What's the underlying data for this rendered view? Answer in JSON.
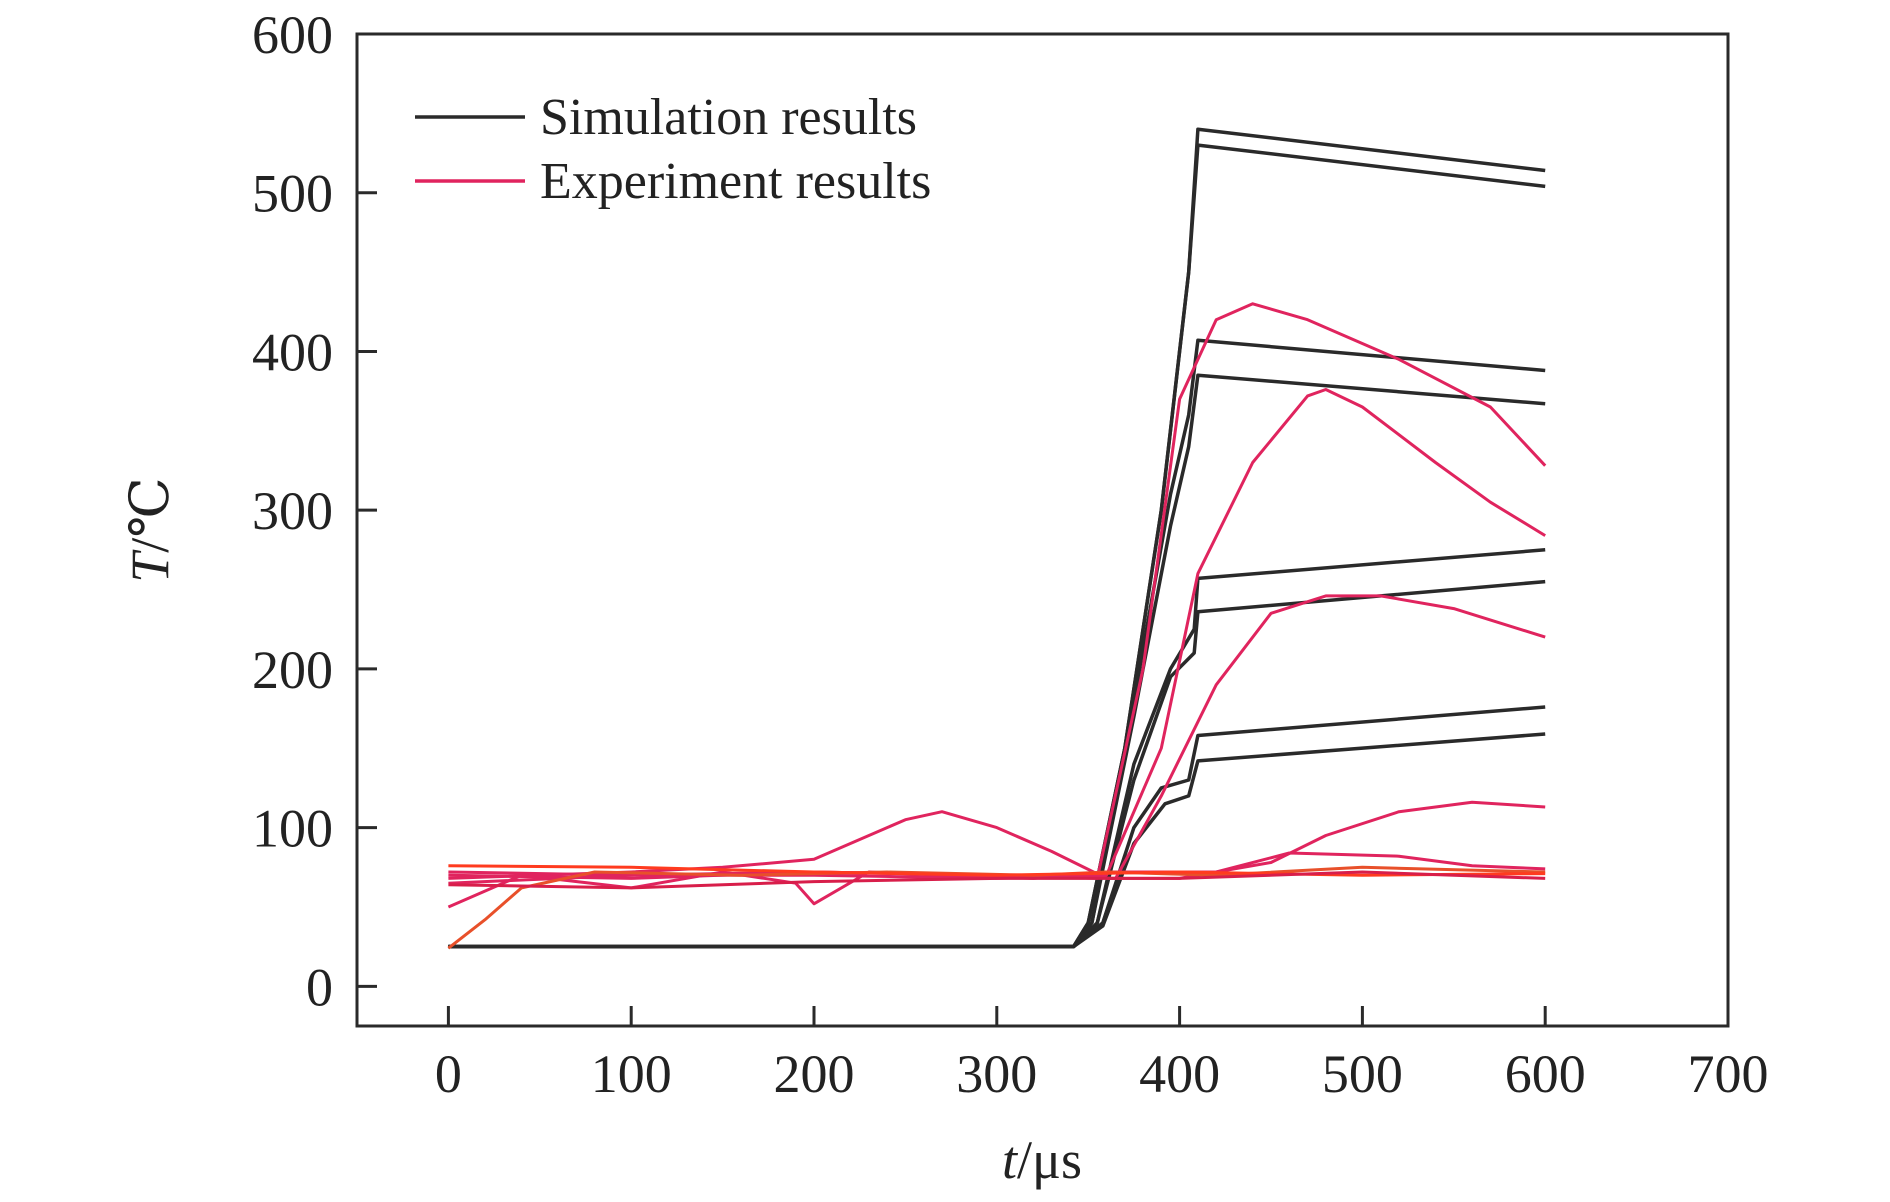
{
  "chart_data": {
    "type": "line",
    "title": "",
    "xlabel_italic": "t",
    "xlabel_unit": "/μs",
    "ylabel_italic": "T",
    "ylabel_unit": "/℃",
    "xlim": [
      -50,
      700
    ],
    "ylim": [
      -25,
      600
    ],
    "xticks": [
      0,
      100,
      200,
      300,
      400,
      500,
      600,
      700
    ],
    "yticks": [
      0,
      100,
      200,
      300,
      400,
      500,
      600
    ],
    "grid": false,
    "legend_position": "top-left",
    "legend": [
      {
        "label": "Simulation results",
        "color": "#2a2a2a"
      },
      {
        "label": "Experiment results",
        "color": "#e0245e"
      }
    ],
    "series": [
      {
        "group": "simulation",
        "color": "#2a2a2a",
        "points": [
          [
            0,
            25
          ],
          [
            342,
            25
          ],
          [
            350,
            40
          ],
          [
            370,
            150
          ],
          [
            390,
            300
          ],
          [
            405,
            450
          ],
          [
            410,
            540
          ],
          [
            600,
            514
          ]
        ]
      },
      {
        "group": "simulation",
        "color": "#2a2a2a",
        "points": [
          [
            0,
            25
          ],
          [
            342,
            25
          ],
          [
            350,
            40
          ],
          [
            370,
            150
          ],
          [
            390,
            300
          ],
          [
            405,
            450
          ],
          [
            410,
            530
          ],
          [
            600,
            504
          ]
        ]
      },
      {
        "group": "simulation",
        "color": "#2a2a2a",
        "points": [
          [
            0,
            25
          ],
          [
            342,
            25
          ],
          [
            352,
            40
          ],
          [
            375,
            180
          ],
          [
            395,
            310
          ],
          [
            405,
            360
          ],
          [
            410,
            407
          ],
          [
            600,
            388
          ]
        ]
      },
      {
        "group": "simulation",
        "color": "#2a2a2a",
        "points": [
          [
            0,
            25
          ],
          [
            342,
            25
          ],
          [
            352,
            40
          ],
          [
            375,
            170
          ],
          [
            395,
            290
          ],
          [
            405,
            340
          ],
          [
            410,
            385
          ],
          [
            600,
            367
          ]
        ]
      },
      {
        "group": "simulation",
        "color": "#2a2a2a",
        "points": [
          [
            0,
            25
          ],
          [
            342,
            25
          ],
          [
            355,
            40
          ],
          [
            375,
            140
          ],
          [
            395,
            200
          ],
          [
            408,
            225
          ],
          [
            410,
            257
          ],
          [
            600,
            275
          ]
        ]
      },
      {
        "group": "simulation",
        "color": "#2a2a2a",
        "points": [
          [
            0,
            25
          ],
          [
            342,
            25
          ],
          [
            355,
            40
          ],
          [
            375,
            130
          ],
          [
            395,
            195
          ],
          [
            408,
            210
          ],
          [
            410,
            236
          ],
          [
            600,
            255
          ]
        ]
      },
      {
        "group": "simulation",
        "color": "#2a2a2a",
        "points": [
          [
            0,
            25
          ],
          [
            342,
            25
          ],
          [
            358,
            40
          ],
          [
            375,
            100
          ],
          [
            390,
            125
          ],
          [
            405,
            130
          ],
          [
            410,
            158
          ],
          [
            600,
            176
          ]
        ]
      },
      {
        "group": "simulation",
        "color": "#2a2a2a",
        "points": [
          [
            0,
            25
          ],
          [
            342,
            25
          ],
          [
            358,
            38
          ],
          [
            375,
            90
          ],
          [
            392,
            115
          ],
          [
            405,
            120
          ],
          [
            410,
            142
          ],
          [
            600,
            159
          ]
        ]
      },
      {
        "group": "experiment",
        "color": "#e0245e",
        "points": [
          [
            0,
            70
          ],
          [
            100,
            68
          ],
          [
            200,
            72
          ],
          [
            300,
            70
          ],
          [
            355,
            68
          ],
          [
            380,
            200
          ],
          [
            400,
            370
          ],
          [
            420,
            420
          ],
          [
            440,
            430
          ],
          [
            470,
            420
          ],
          [
            520,
            395
          ],
          [
            570,
            365
          ],
          [
            600,
            328
          ]
        ]
      },
      {
        "group": "experiment",
        "color": "#e0245e",
        "points": [
          [
            0,
            65
          ],
          [
            100,
            70
          ],
          [
            200,
            70
          ],
          [
            300,
            68
          ],
          [
            360,
            70
          ],
          [
            390,
            150
          ],
          [
            410,
            260
          ],
          [
            440,
            330
          ],
          [
            470,
            372
          ],
          [
            480,
            376
          ],
          [
            500,
            365
          ],
          [
            540,
            330
          ],
          [
            570,
            305
          ],
          [
            600,
            284
          ]
        ]
      },
      {
        "group": "experiment",
        "color": "#e0245e",
        "points": [
          [
            0,
            72
          ],
          [
            100,
            70
          ],
          [
            200,
            72
          ],
          [
            300,
            70
          ],
          [
            365,
            68
          ],
          [
            390,
            120
          ],
          [
            420,
            190
          ],
          [
            450,
            235
          ],
          [
            480,
            246
          ],
          [
            510,
            246
          ],
          [
            550,
            238
          ],
          [
            600,
            220
          ]
        ]
      },
      {
        "group": "experiment",
        "color": "#e0245e",
        "points": [
          [
            0,
            68
          ],
          [
            100,
            72
          ],
          [
            150,
            75
          ],
          [
            200,
            80
          ],
          [
            250,
            105
          ],
          [
            270,
            110
          ],
          [
            300,
            100
          ],
          [
            330,
            85
          ],
          [
            360,
            68
          ],
          [
            400,
            68
          ],
          [
            450,
            78
          ],
          [
            480,
            95
          ],
          [
            520,
            110
          ],
          [
            560,
            116
          ],
          [
            600,
            113
          ]
        ]
      },
      {
        "group": "experiment",
        "color": "#e0245e",
        "points": [
          [
            0,
            50
          ],
          [
            40,
            70
          ],
          [
            100,
            62
          ],
          [
            150,
            72
          ],
          [
            190,
            65
          ],
          [
            200,
            52
          ],
          [
            230,
            72
          ],
          [
            270,
            70
          ],
          [
            320,
            68
          ],
          [
            360,
            72
          ],
          [
            420,
            72
          ],
          [
            460,
            84
          ],
          [
            520,
            82
          ],
          [
            560,
            76
          ],
          [
            600,
            74
          ]
        ]
      },
      {
        "group": "experiment",
        "color": "#e8502a",
        "points": [
          [
            0,
            24
          ],
          [
            20,
            42
          ],
          [
            40,
            62
          ],
          [
            80,
            72
          ],
          [
            160,
            70
          ],
          [
            240,
            72
          ],
          [
            320,
            70
          ],
          [
            360,
            72
          ],
          [
            420,
            70
          ],
          [
            500,
            75
          ],
          [
            600,
            72
          ]
        ]
      },
      {
        "group": "experiment",
        "color": "#ff3b1f",
        "points": [
          [
            0,
            76
          ],
          [
            100,
            75
          ],
          [
            200,
            72
          ],
          [
            300,
            70
          ],
          [
            400,
            72
          ],
          [
            500,
            70
          ],
          [
            600,
            71
          ]
        ]
      },
      {
        "group": "experiment",
        "color": "#d81e4a",
        "points": [
          [
            0,
            64
          ],
          [
            100,
            62
          ],
          [
            200,
            66
          ],
          [
            300,
            68
          ],
          [
            400,
            68
          ],
          [
            500,
            72
          ],
          [
            600,
            68
          ]
        ]
      }
    ]
  }
}
